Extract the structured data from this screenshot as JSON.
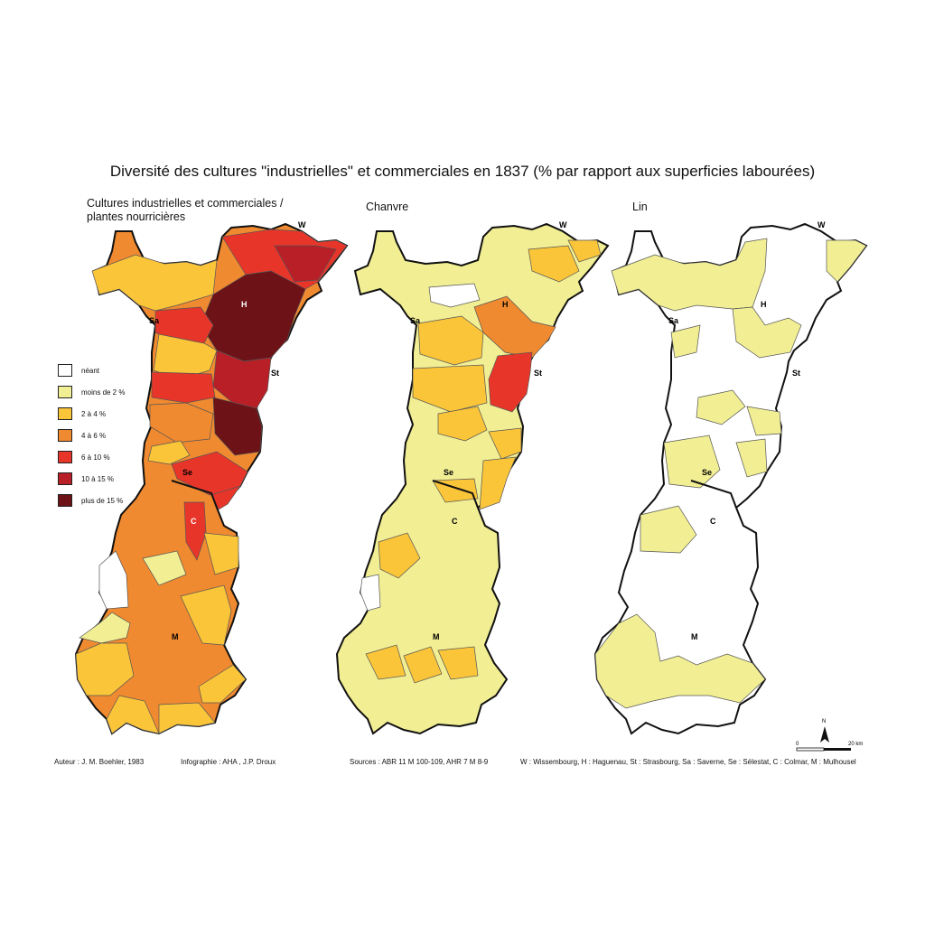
{
  "title": "Diversité des cultures \"industrielles\" et commerciales en 1837 (% par rapport aux superficies labourées)",
  "maps": [
    {
      "title_lines": [
        "Cultures industrielles et commerciales /",
        "plantes nourricières"
      ]
    },
    {
      "title_lines": [
        "Chanvre"
      ]
    },
    {
      "title_lines": [
        "Lin"
      ]
    }
  ],
  "legend": [
    {
      "label": "néant",
      "color": "#ffffff"
    },
    {
      "label": "moins de 2 %",
      "color": "#f1ee94"
    },
    {
      "label": "2 à 4 %",
      "color": "#fbc53a"
    },
    {
      "label": "4 à 6 %",
      "color": "#f08a30"
    },
    {
      "label": "6 à 10 %",
      "color": "#e8352a"
    },
    {
      "label": "10 à 15 %",
      "color": "#b81f27"
    },
    {
      "label": "plus de 15 %",
      "color": "#6d1216"
    }
  ],
  "city_labels": [
    "W",
    "H",
    "Sa",
    "St",
    "Se",
    "C",
    "M"
  ],
  "scale": {
    "north": "N",
    "zero": "0",
    "length": "20 km"
  },
  "footer": {
    "author": "Auteur : J. M. Boehler, 1983",
    "infographics": "Infographie : AHA , J.P. Droux",
    "sources": "Sources : ABR 11 M 100-109, AHR 7 M 8-9",
    "abbreviations": "W : Wissembourg, H : Haguenau, St : Strasbourg, Sa : Saverne, Se : Sélestat, C : Colmar, M : Mulhousel"
  }
}
